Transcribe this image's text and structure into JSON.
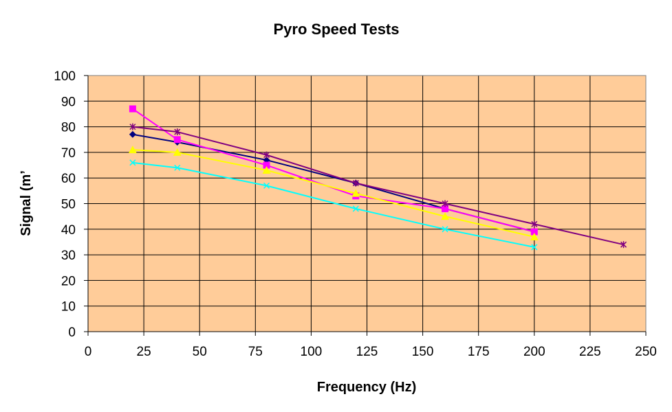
{
  "chart_data": {
    "type": "line",
    "title": "Pyro Speed Tests",
    "xlabel": "Frequency (Hz)",
    "ylabel": "Signal (mʼ",
    "xlim": [
      0,
      250
    ],
    "ylim": [
      0,
      100
    ],
    "x_ticks": [
      0,
      25,
      50,
      75,
      100,
      125,
      150,
      175,
      200,
      225,
      250
    ],
    "y_ticks": [
      0,
      10,
      20,
      30,
      40,
      50,
      60,
      70,
      80,
      90,
      100
    ],
    "grid": true,
    "legend": "none",
    "plot_background": "#ffcc99",
    "series": [
      {
        "color": "#000080",
        "marker": "diamond",
        "x": [
          20,
          40,
          80,
          120,
          160,
          200
        ],
        "y": [
          77,
          74,
          67,
          58,
          48,
          39
        ]
      },
      {
        "color": "#ff00ff",
        "marker": "square",
        "x": [
          20,
          40,
          80,
          120,
          160,
          200
        ],
        "y": [
          87,
          75,
          65,
          53,
          48,
          39
        ]
      },
      {
        "color": "#ffff00",
        "marker": "triangle",
        "x": [
          20,
          40,
          80,
          120,
          160,
          200
        ],
        "y": [
          71,
          70,
          63,
          54,
          45,
          37
        ]
      },
      {
        "color": "#00ffff",
        "marker": "x",
        "x": [
          20,
          40,
          80,
          120,
          160,
          200
        ],
        "y": [
          66,
          64,
          57,
          48,
          40,
          33
        ]
      },
      {
        "color": "#800080",
        "marker": "star",
        "x": [
          20,
          40,
          80,
          120,
          160,
          200,
          240
        ],
        "y": [
          80,
          78,
          69,
          58,
          50,
          42,
          34
        ]
      }
    ]
  }
}
